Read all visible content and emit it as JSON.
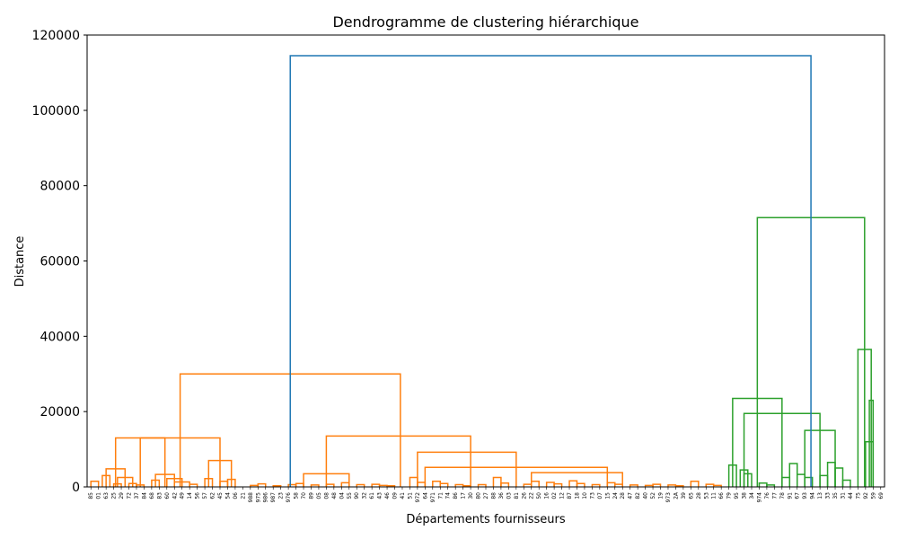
{
  "chart_data": {
    "type": "dendrogram",
    "title": "Dendrogramme de clustering hiérarchique",
    "xlabel": "Départements fournisseurs",
    "ylabel": "Distance",
    "ylim": [
      0,
      120000
    ],
    "yticks": [
      0,
      20000,
      40000,
      60000,
      80000,
      100000,
      120000
    ],
    "ytick_labels": [
      "0",
      "20000",
      "40000",
      "60000",
      "80000",
      "100000",
      "120000"
    ],
    "grid": false,
    "colors": {
      "root": "#1f77b4",
      "cluster_1": "#ff7f0e",
      "cluster_2": "#2ca02c"
    },
    "leaves": [
      "85",
      "01",
      "63",
      "25",
      "29",
      "72",
      "37",
      "84",
      "68",
      "83",
      "60",
      "42",
      "49",
      "14",
      "56",
      "57",
      "62",
      "45",
      "54",
      "06",
      "21",
      "988",
      "975",
      "986",
      "987",
      "23",
      "976",
      "58",
      "70",
      "89",
      "05",
      "08",
      "48",
      "04",
      "55",
      "90",
      "32",
      "61",
      "43",
      "46",
      "09",
      "41",
      "51",
      "972",
      "64",
      "971",
      "71",
      "74",
      "86",
      "17",
      "30",
      "80",
      "27",
      "88",
      "36",
      "03",
      "81",
      "26",
      "22",
      "50",
      "16",
      "02",
      "12",
      "87",
      "18",
      "10",
      "73",
      "07",
      "15",
      "24",
      "28",
      "47",
      "82",
      "40",
      "52",
      "19",
      "973",
      "2A",
      "39",
      "65",
      "28",
      "53",
      "11",
      "66",
      "79",
      "95",
      "38",
      "34",
      "974",
      "76",
      "77",
      "78",
      "91",
      "67",
      "93",
      "94",
      "13",
      "33",
      "35",
      "31",
      "44",
      "75",
      "92",
      "59",
      "69"
    ],
    "links": [
      {
        "i": 0,
        "j": 1,
        "h": 1500,
        "c": "cluster_1"
      },
      {
        "i": 1.5,
        "j": 2.5,
        "h": 3000,
        "c": "cluster_1"
      },
      {
        "i": 3,
        "j": 4,
        "h": 800,
        "c": "cluster_1"
      },
      {
        "i": 3.5,
        "j": 5.5,
        "h": 2500,
        "c": "cluster_1"
      },
      {
        "i": 5,
        "j": 6,
        "h": 900,
        "c": "cluster_1"
      },
      {
        "i": 6,
        "j": 7,
        "h": 500,
        "c": "cluster_1"
      },
      {
        "i": 2,
        "j": 4.5,
        "h": 4800,
        "c": "cluster_1"
      },
      {
        "i": 8,
        "j": 9,
        "h": 1800,
        "c": "cluster_1"
      },
      {
        "i": 8.5,
        "j": 11,
        "h": 3300,
        "c": "cluster_1"
      },
      {
        "i": 10,
        "j": 12,
        "h": 2200,
        "c": "cluster_1"
      },
      {
        "i": 11,
        "j": 13,
        "h": 1300,
        "c": "cluster_1"
      },
      {
        "i": 13,
        "j": 14,
        "h": 700,
        "c": "cluster_1"
      },
      {
        "i": 3.25,
        "j": 9.75,
        "h": 13000,
        "c": "cluster_1"
      },
      {
        "i": 15,
        "j": 16,
        "h": 2200,
        "c": "cluster_1"
      },
      {
        "i": 17,
        "j": 18,
        "h": 1500,
        "c": "cluster_1"
      },
      {
        "i": 18,
        "j": 19,
        "h": 2000,
        "c": "cluster_1"
      },
      {
        "i": 15.5,
        "j": 18.5,
        "h": 7000,
        "c": "cluster_1"
      },
      {
        "i": 6.5,
        "j": 17,
        "h": 13000,
        "c": "cluster_1"
      },
      {
        "i": 21,
        "j": 22,
        "h": 400,
        "c": "cluster_1"
      },
      {
        "i": 22,
        "j": 23,
        "h": 800,
        "c": "cluster_1"
      },
      {
        "i": 24,
        "j": 25,
        "h": 300,
        "c": "cluster_1"
      },
      {
        "i": 26,
        "j": 27,
        "h": 600,
        "c": "cluster_1"
      },
      {
        "i": 27,
        "j": 28,
        "h": 900,
        "c": "cluster_1"
      },
      {
        "i": 29,
        "j": 30,
        "h": 500,
        "c": "cluster_1"
      },
      {
        "i": 31,
        "j": 32,
        "h": 700,
        "c": "cluster_1"
      },
      {
        "i": 33,
        "j": 34,
        "h": 1100,
        "c": "cluster_1"
      },
      {
        "i": 35,
        "j": 36,
        "h": 600,
        "c": "cluster_1"
      },
      {
        "i": 37,
        "j": 38,
        "h": 700,
        "c": "cluster_1"
      },
      {
        "i": 38,
        "j": 39,
        "h": 400,
        "c": "cluster_1"
      },
      {
        "i": 39,
        "j": 40,
        "h": 300,
        "c": "cluster_1"
      },
      {
        "i": 28,
        "j": 34,
        "h": 3500,
        "c": "cluster_1"
      },
      {
        "i": 42,
        "j": 43,
        "h": 2500,
        "c": "cluster_1"
      },
      {
        "i": 43,
        "j": 44,
        "h": 1200,
        "c": "cluster_1"
      },
      {
        "i": 45,
        "j": 46,
        "h": 1500,
        "c": "cluster_1"
      },
      {
        "i": 46,
        "j": 47,
        "h": 900,
        "c": "cluster_1"
      },
      {
        "i": 48,
        "j": 49,
        "h": 600,
        "c": "cluster_1"
      },
      {
        "i": 49,
        "j": 50,
        "h": 300,
        "c": "cluster_1"
      },
      {
        "i": 51,
        "j": 52,
        "h": 600,
        "c": "cluster_1"
      },
      {
        "i": 53,
        "j": 54,
        "h": 2500,
        "c": "cluster_1"
      },
      {
        "i": 54,
        "j": 55,
        "h": 1000,
        "c": "cluster_1"
      },
      {
        "i": 57,
        "j": 58,
        "h": 700,
        "c": "cluster_1"
      },
      {
        "i": 58,
        "j": 59,
        "h": 1500,
        "c": "cluster_1"
      },
      {
        "i": 60,
        "j": 61,
        "h": 1200,
        "c": "cluster_1"
      },
      {
        "i": 61,
        "j": 62,
        "h": 800,
        "c": "cluster_1"
      },
      {
        "i": 63,
        "j": 64,
        "h": 1600,
        "c": "cluster_1"
      },
      {
        "i": 64,
        "j": 65,
        "h": 900,
        "c": "cluster_1"
      },
      {
        "i": 66,
        "j": 67,
        "h": 600,
        "c": "cluster_1"
      },
      {
        "i": 68,
        "j": 69,
        "h": 1100,
        "c": "cluster_1"
      },
      {
        "i": 69,
        "j": 70,
        "h": 700,
        "c": "cluster_1"
      },
      {
        "i": 71,
        "j": 72,
        "h": 500,
        "c": "cluster_1"
      },
      {
        "i": 73,
        "j": 74,
        "h": 400,
        "c": "cluster_1"
      },
      {
        "i": 74,
        "j": 75,
        "h": 700,
        "c": "cluster_1"
      },
      {
        "i": 76,
        "j": 77,
        "h": 500,
        "c": "cluster_1"
      },
      {
        "i": 77,
        "j": 78,
        "h": 300,
        "c": "cluster_1"
      },
      {
        "i": 79,
        "j": 80,
        "h": 1500,
        "c": "cluster_1"
      },
      {
        "i": 81,
        "j": 82,
        "h": 700,
        "c": "cluster_1"
      },
      {
        "i": 82,
        "j": 83,
        "h": 400,
        "c": "cluster_1"
      },
      {
        "i": 58,
        "j": 70,
        "h": 3800,
        "c": "cluster_1"
      },
      {
        "i": 44,
        "j": 68,
        "h": 5200,
        "c": "cluster_1"
      },
      {
        "i": 43,
        "j": 56,
        "h": 9200,
        "c": "cluster_1"
      },
      {
        "i": 31,
        "j": 50,
        "h": 13500,
        "c": "cluster_1"
      },
      {
        "i": 11.75,
        "j": 40.75,
        "h": 30000,
        "c": "cluster_1"
      },
      {
        "i": 84,
        "j": 85,
        "h": 5800,
        "c": "cluster_2"
      },
      {
        "i": 85.5,
        "j": 86.5,
        "h": 4500,
        "c": "cluster_2"
      },
      {
        "i": 86,
        "j": 87,
        "h": 3500,
        "c": "cluster_2"
      },
      {
        "i": 88,
        "j": 89,
        "h": 1000,
        "c": "cluster_2"
      },
      {
        "i": 89,
        "j": 90,
        "h": 500,
        "c": "cluster_2"
      },
      {
        "i": 91,
        "j": 92,
        "h": 2500,
        "c": "cluster_2"
      },
      {
        "i": 92,
        "j": 93,
        "h": 6200,
        "c": "cluster_2"
      },
      {
        "i": 93,
        "j": 94,
        "h": 3300,
        "c": "cluster_2"
      },
      {
        "i": 94,
        "j": 95,
        "h": 2500,
        "c": "cluster_2"
      },
      {
        "i": 96,
        "j": 97,
        "h": 3000,
        "c": "cluster_2"
      },
      {
        "i": 97,
        "j": 98,
        "h": 6500,
        "c": "cluster_2"
      },
      {
        "i": 98,
        "j": 99,
        "h": 5000,
        "c": "cluster_2"
      },
      {
        "i": 99,
        "j": 100,
        "h": 1800,
        "c": "cluster_2"
      },
      {
        "i": 94,
        "j": 98,
        "h": 15000,
        "c": "cluster_2"
      },
      {
        "i": 86,
        "j": 96,
        "h": 19500,
        "c": "cluster_2"
      },
      {
        "i": 84.5,
        "j": 91,
        "h": 23500,
        "c": "cluster_2"
      },
      {
        "i": 102,
        "j": 103,
        "h": 12000,
        "c": "cluster_2"
      },
      {
        "i": 102.5,
        "j": 103,
        "h": 23000,
        "c": "cluster_2"
      },
      {
        "i": 101,
        "j": 102.75,
        "h": 36500,
        "c": "cluster_2"
      },
      {
        "i": 87.75,
        "j": 101.875,
        "h": 71500,
        "c": "cluster_2"
      },
      {
        "i": 26.25,
        "j": 94.8125,
        "h": 114500,
        "c": "root"
      }
    ]
  }
}
